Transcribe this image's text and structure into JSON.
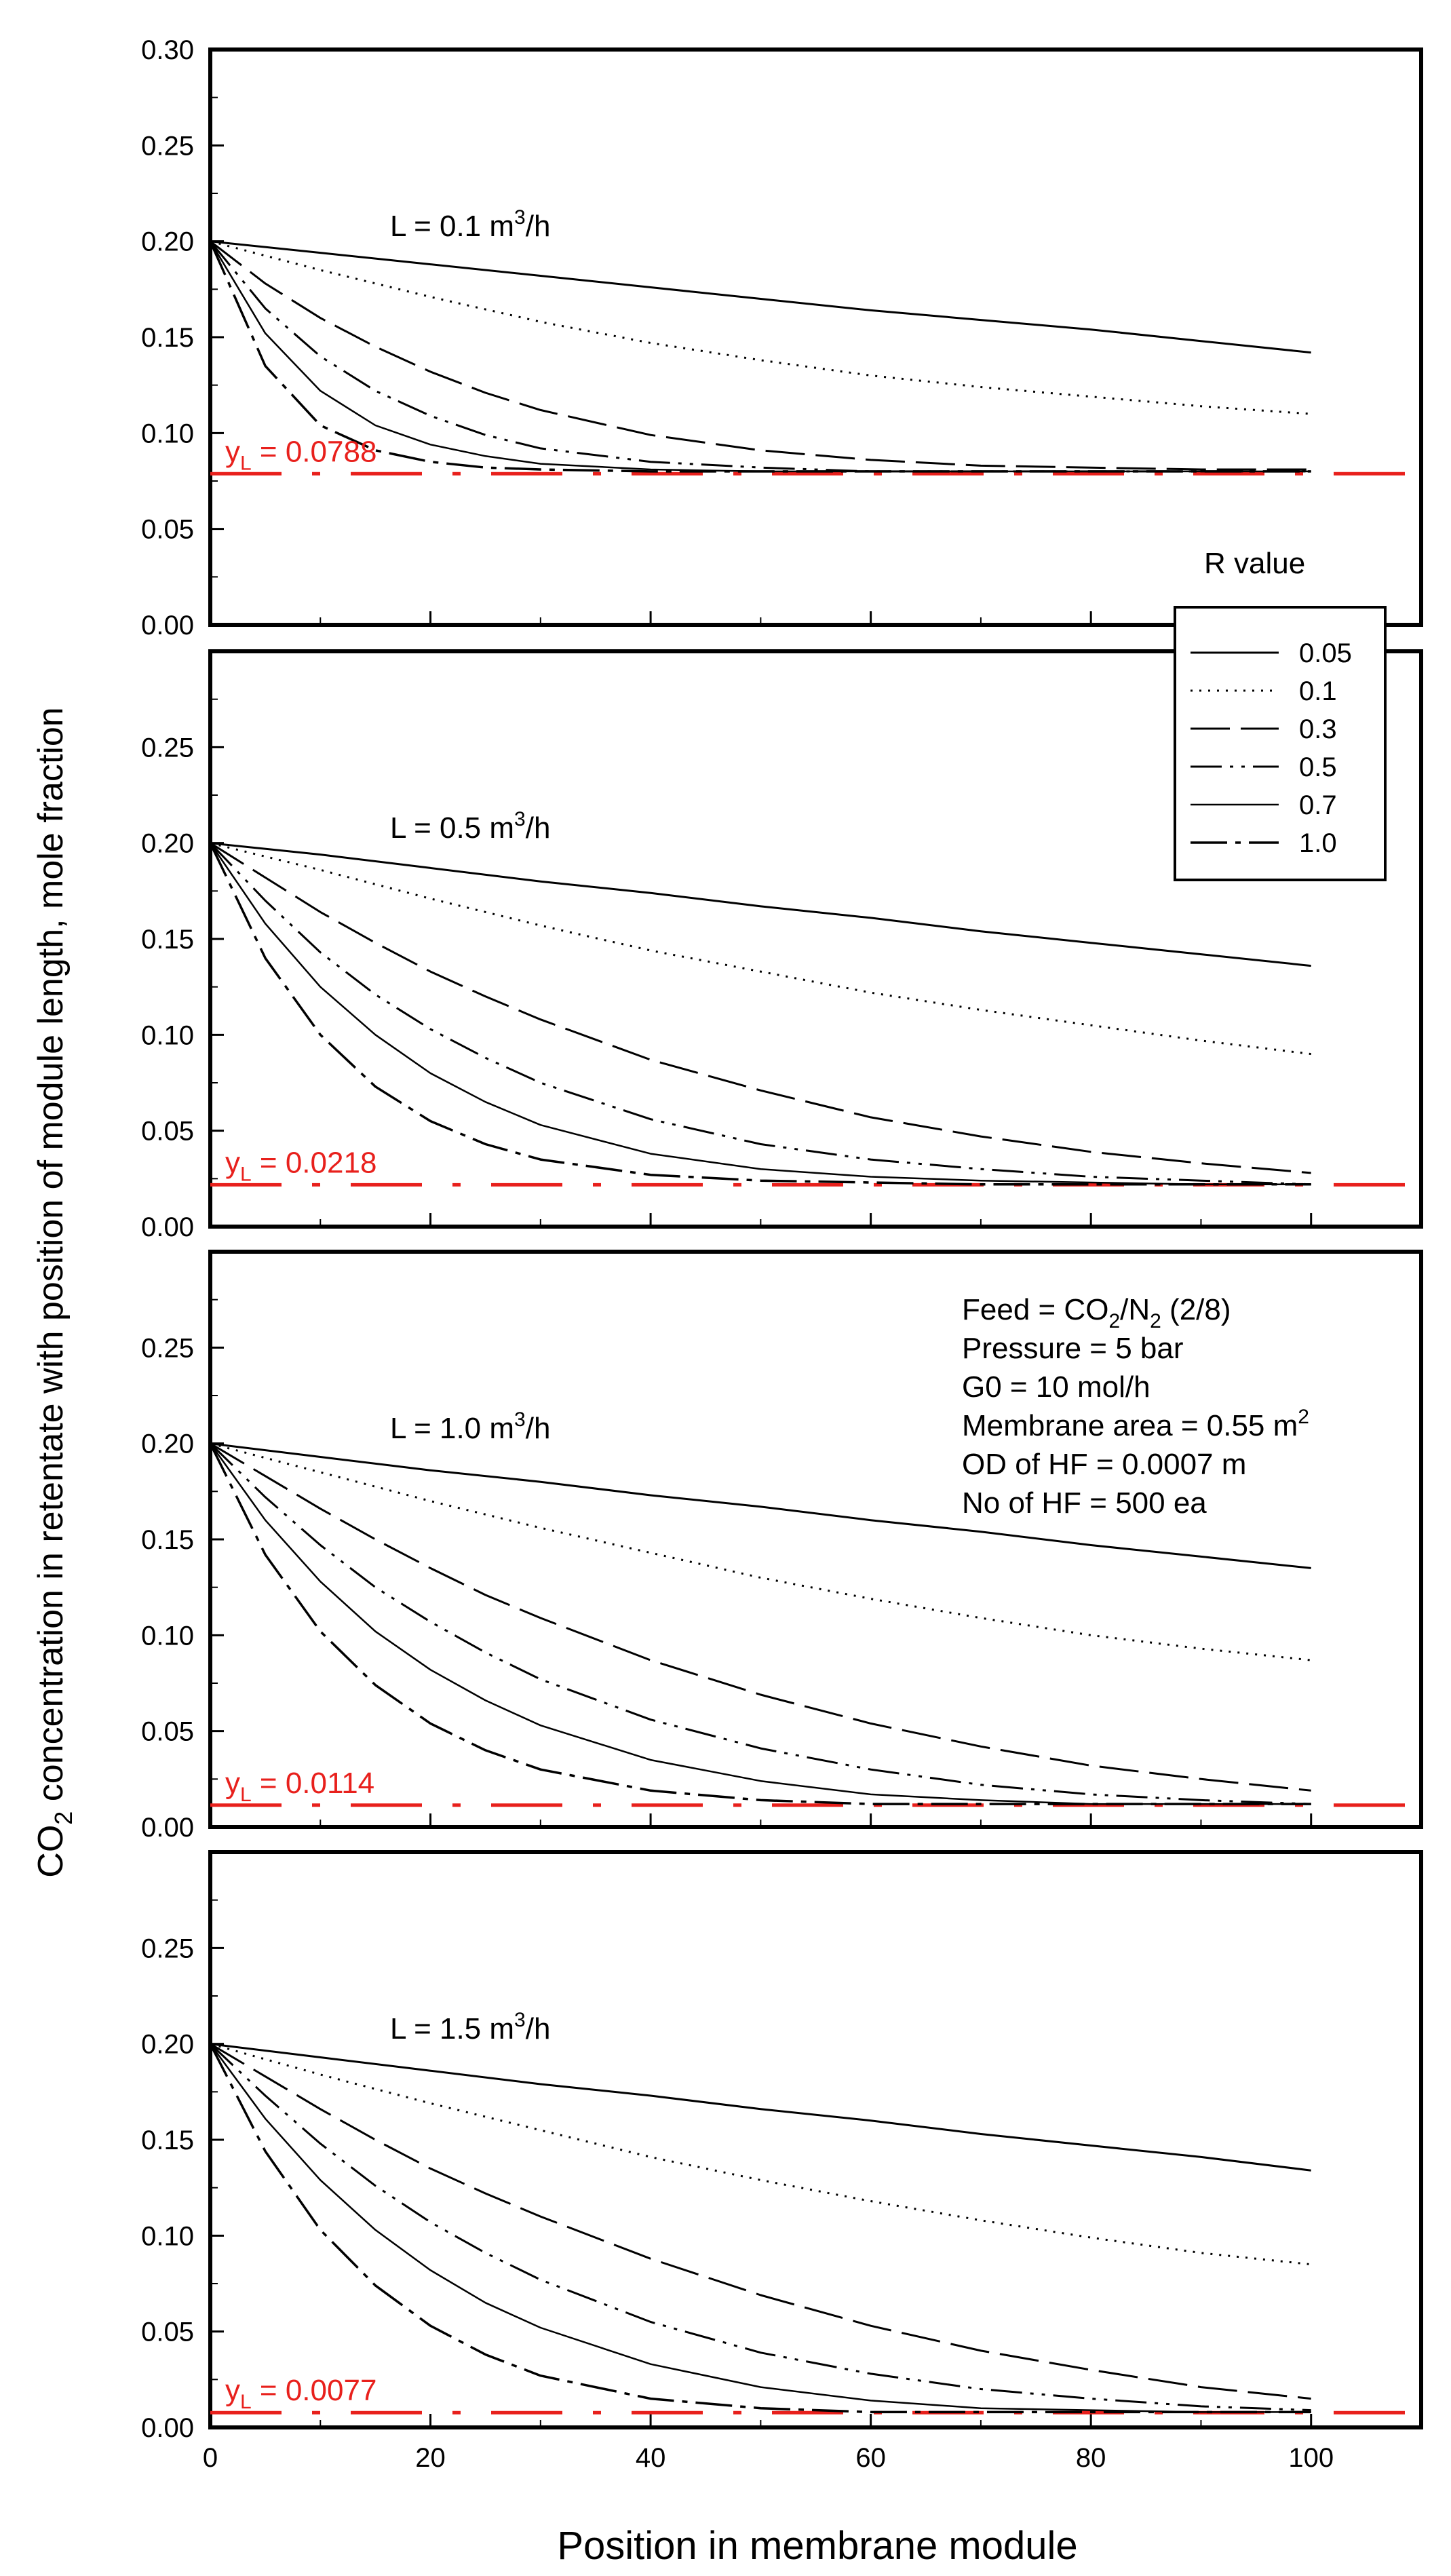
{
  "chart_data": {
    "type": "line",
    "title": "",
    "xlabel": "Position in membrane module",
    "ylabel": {
      "prefix": "CO",
      "sub": "2",
      "rest": " concentration in retentate with position of module length, mole fraction"
    },
    "x_range": [
      0,
      110
    ],
    "x_ticks": [
      0,
      20,
      40,
      60,
      80,
      100
    ],
    "legend": {
      "title": "R value",
      "placement": "right, between the first and second panels",
      "entries": [
        "0.05",
        "0.1",
        "0.3",
        "0.5",
        "0.7",
        "1.0"
      ]
    },
    "series_styles": {
      "0.05": "solid",
      "0.1": "dotted",
      "0.3": "long-dash",
      "0.5": "dash-dot-dot",
      "0.7": "solid",
      "1.0": "dash-dot"
    },
    "annotation": {
      "placement": "inside third panel, upper right",
      "lines": [
        {
          "text": "Feed = CO",
          "sub": "2",
          "mid": "/N",
          "sub2": "2",
          "tail": " (2/8)"
        },
        {
          "text": "Pressure = 5 bar"
        },
        {
          "text": "G0 = 10 mol/h"
        },
        {
          "text": "Membrane area = 0.55 m",
          "sup": "2"
        },
        {
          "text": "OD of HF =  0.0007 m"
        },
        {
          "text": "No of HF = 500 ea"
        }
      ]
    },
    "reference_color": "#e8201c",
    "panels": [
      {
        "label": "L = 0.1 m",
        "label_sup": "3",
        "label_tail": "/h",
        "y_range": [
          0,
          0.3
        ],
        "y_ticks": [
          "0.00",
          "0.05",
          "0.10",
          "0.15",
          "0.20",
          "0.25",
          "0.30"
        ],
        "yL": 0.0788,
        "yL_label": "y",
        "yL_sub": "L",
        "yL_text": " = 0.0788",
        "series": [
          {
            "name": "0.05",
            "x": [
              0,
              10,
              20,
              30,
              40,
              50,
              60,
              70,
              80,
              90,
              100
            ],
            "values": [
              0.2,
              0.194,
              0.188,
              0.182,
              0.176,
              0.17,
              0.164,
              0.159,
              0.154,
              0.148,
              0.142
            ]
          },
          {
            "name": "0.1",
            "x": [
              0,
              10,
              20,
              30,
              40,
              50,
              60,
              70,
              80,
              90,
              100
            ],
            "values": [
              0.2,
              0.185,
              0.171,
              0.158,
              0.147,
              0.138,
              0.13,
              0.124,
              0.119,
              0.114,
              0.11
            ]
          },
          {
            "name": "0.3",
            "x": [
              0,
              5,
              10,
              15,
              20,
              25,
              30,
              40,
              50,
              60,
              70,
              80,
              90,
              100
            ],
            "values": [
              0.2,
              0.178,
              0.16,
              0.145,
              0.132,
              0.121,
              0.112,
              0.099,
              0.091,
              0.086,
              0.083,
              0.082,
              0.081,
              0.081
            ]
          },
          {
            "name": "0.5",
            "x": [
              0,
              5,
              10,
              15,
              20,
              25,
              30,
              40,
              50,
              60,
              70,
              80,
              90,
              100
            ],
            "values": [
              0.2,
              0.165,
              0.14,
              0.122,
              0.109,
              0.099,
              0.092,
              0.085,
              0.082,
              0.08,
              0.08,
              0.08,
              0.08,
              0.08
            ]
          },
          {
            "name": "0.7",
            "x": [
              0,
              5,
              10,
              15,
              20,
              25,
              30,
              40,
              50,
              60,
              70,
              80,
              90,
              100
            ],
            "values": [
              0.2,
              0.152,
              0.122,
              0.104,
              0.094,
              0.088,
              0.084,
              0.081,
              0.08,
              0.08,
              0.08,
              0.08,
              0.08,
              0.08
            ]
          },
          {
            "name": "1.0",
            "x": [
              0,
              5,
              10,
              15,
              20,
              25,
              30,
              40,
              50,
              60,
              70,
              80,
              90,
              100
            ],
            "values": [
              0.2,
              0.135,
              0.104,
              0.091,
              0.085,
              0.082,
              0.081,
              0.08,
              0.08,
              0.08,
              0.08,
              0.08,
              0.08,
              0.08
            ]
          }
        ]
      },
      {
        "label": "L = 0.5 m",
        "label_sup": "3",
        "label_tail": "/h",
        "y_range": [
          0,
          0.3
        ],
        "y_ticks": [
          "0.00",
          "0.05",
          "0.10",
          "0.15",
          "0.20",
          "0.25"
        ],
        "yL": 0.0218,
        "yL_label": "y",
        "yL_sub": "L",
        "yL_text": " = 0.0218",
        "series": [
          {
            "name": "0.05",
            "x": [
              0,
              10,
              20,
              30,
              40,
              50,
              60,
              70,
              80,
              90,
              100
            ],
            "values": [
              0.2,
              0.194,
              0.187,
              0.18,
              0.174,
              0.167,
              0.161,
              0.154,
              0.148,
              0.142,
              0.136
            ]
          },
          {
            "name": "0.1",
            "x": [
              0,
              10,
              20,
              30,
              40,
              50,
              60,
              70,
              80,
              90,
              100
            ],
            "values": [
              0.2,
              0.186,
              0.171,
              0.157,
              0.144,
              0.133,
              0.122,
              0.113,
              0.105,
              0.097,
              0.09
            ]
          },
          {
            "name": "0.3",
            "x": [
              0,
              5,
              10,
              15,
              20,
              25,
              30,
              40,
              50,
              60,
              70,
              80,
              90,
              100
            ],
            "values": [
              0.2,
              0.182,
              0.164,
              0.148,
              0.133,
              0.12,
              0.108,
              0.087,
              0.071,
              0.057,
              0.047,
              0.039,
              0.033,
              0.028
            ]
          },
          {
            "name": "0.5",
            "x": [
              0,
              5,
              10,
              15,
              20,
              25,
              30,
              40,
              50,
              60,
              70,
              80,
              90,
              100
            ],
            "values": [
              0.2,
              0.17,
              0.143,
              0.121,
              0.103,
              0.088,
              0.075,
              0.056,
              0.043,
              0.035,
              0.03,
              0.026,
              0.024,
              0.022
            ]
          },
          {
            "name": "0.7",
            "x": [
              0,
              5,
              10,
              15,
              20,
              25,
              30,
              40,
              50,
              60,
              70,
              80,
              90,
              100
            ],
            "values": [
              0.2,
              0.158,
              0.125,
              0.1,
              0.08,
              0.065,
              0.053,
              0.038,
              0.03,
              0.026,
              0.024,
              0.023,
              0.022,
              0.022
            ]
          },
          {
            "name": "1.0",
            "x": [
              0,
              5,
              10,
              15,
              20,
              25,
              30,
              40,
              50,
              60,
              70,
              80,
              90,
              100
            ],
            "values": [
              0.2,
              0.14,
              0.1,
              0.073,
              0.055,
              0.043,
              0.035,
              0.027,
              0.024,
              0.023,
              0.022,
              0.022,
              0.022,
              0.022
            ]
          }
        ]
      },
      {
        "label": "L = 1.0 m",
        "label_sup": "3",
        "label_tail": "/h",
        "y_range": [
          0,
          0.3
        ],
        "y_ticks": [
          "0.00",
          "0.05",
          "0.10",
          "0.15",
          "0.20",
          "0.25"
        ],
        "yL": 0.0114,
        "yL_label": "y",
        "yL_sub": "L",
        "yL_text": " = 0.0114",
        "series": [
          {
            "name": "0.05",
            "x": [
              0,
              10,
              20,
              30,
              40,
              50,
              60,
              70,
              80,
              90,
              100
            ],
            "values": [
              0.2,
              0.193,
              0.186,
              0.18,
              0.173,
              0.167,
              0.16,
              0.154,
              0.147,
              0.141,
              0.135
            ]
          },
          {
            "name": "0.1",
            "x": [
              0,
              10,
              20,
              30,
              40,
              50,
              60,
              70,
              80,
              90,
              100
            ],
            "values": [
              0.2,
              0.185,
              0.17,
              0.156,
              0.143,
              0.13,
              0.119,
              0.109,
              0.1,
              0.093,
              0.087
            ]
          },
          {
            "name": "0.3",
            "x": [
              0,
              5,
              10,
              15,
              20,
              25,
              30,
              40,
              50,
              60,
              70,
              80,
              90,
              100
            ],
            "values": [
              0.2,
              0.183,
              0.166,
              0.15,
              0.135,
              0.121,
              0.109,
              0.087,
              0.069,
              0.054,
              0.042,
              0.032,
              0.025,
              0.019
            ]
          },
          {
            "name": "0.5",
            "x": [
              0,
              5,
              10,
              15,
              20,
              25,
              30,
              40,
              50,
              60,
              70,
              80,
              90,
              100
            ],
            "values": [
              0.2,
              0.172,
              0.147,
              0.125,
              0.107,
              0.091,
              0.077,
              0.056,
              0.041,
              0.03,
              0.022,
              0.017,
              0.014,
              0.012
            ]
          },
          {
            "name": "0.7",
            "x": [
              0,
              5,
              10,
              15,
              20,
              25,
              30,
              40,
              50,
              60,
              70,
              80,
              90,
              100
            ],
            "values": [
              0.2,
              0.16,
              0.128,
              0.102,
              0.082,
              0.066,
              0.053,
              0.035,
              0.024,
              0.017,
              0.014,
              0.012,
              0.012,
              0.012
            ]
          },
          {
            "name": "1.0",
            "x": [
              0,
              5,
              10,
              15,
              20,
              25,
              30,
              40,
              50,
              60,
              70,
              80,
              90,
              100
            ],
            "values": [
              0.2,
              0.142,
              0.102,
              0.074,
              0.054,
              0.04,
              0.03,
              0.019,
              0.014,
              0.012,
              0.012,
              0.012,
              0.012,
              0.012
            ]
          }
        ]
      },
      {
        "label": "L = 1.5 m",
        "label_sup": "3",
        "label_tail": "/h",
        "y_range": [
          0,
          0.3
        ],
        "y_ticks": [
          "0.00",
          "0.05",
          "0.10",
          "0.15",
          "0.20",
          "0.25"
        ],
        "yL": 0.0077,
        "yL_label": "y",
        "yL_sub": "L",
        "yL_text": " = 0.0077",
        "series": [
          {
            "name": "0.05",
            "x": [
              0,
              10,
              20,
              30,
              40,
              50,
              60,
              70,
              80,
              90,
              100
            ],
            "values": [
              0.2,
              0.193,
              0.186,
              0.179,
              0.173,
              0.166,
              0.16,
              0.153,
              0.147,
              0.141,
              0.134
            ]
          },
          {
            "name": "0.1",
            "x": [
              0,
              10,
              20,
              30,
              40,
              50,
              60,
              70,
              80,
              90,
              100
            ],
            "values": [
              0.2,
              0.184,
              0.169,
              0.155,
              0.141,
              0.129,
              0.118,
              0.108,
              0.099,
              0.091,
              0.085
            ]
          },
          {
            "name": "0.3",
            "x": [
              0,
              5,
              10,
              15,
              20,
              25,
              30,
              40,
              50,
              60,
              70,
              80,
              90,
              100
            ],
            "values": [
              0.2,
              0.183,
              0.166,
              0.15,
              0.135,
              0.122,
              0.11,
              0.088,
              0.069,
              0.053,
              0.04,
              0.03,
              0.021,
              0.015
            ]
          },
          {
            "name": "0.5",
            "x": [
              0,
              5,
              10,
              15,
              20,
              25,
              30,
              40,
              50,
              60,
              70,
              80,
              90,
              100
            ],
            "values": [
              0.2,
              0.173,
              0.148,
              0.126,
              0.107,
              0.091,
              0.077,
              0.055,
              0.039,
              0.028,
              0.02,
              0.015,
              0.011,
              0.009
            ]
          },
          {
            "name": "0.7",
            "x": [
              0,
              5,
              10,
              15,
              20,
              25,
              30,
              40,
              50,
              60,
              70,
              80,
              90,
              100
            ],
            "values": [
              0.2,
              0.161,
              0.129,
              0.103,
              0.082,
              0.065,
              0.052,
              0.033,
              0.021,
              0.014,
              0.01,
              0.009,
              0.008,
              0.008
            ]
          },
          {
            "name": "1.0",
            "x": [
              0,
              5,
              10,
              15,
              20,
              25,
              30,
              40,
              50,
              60,
              70,
              80,
              90,
              100
            ],
            "values": [
              0.2,
              0.144,
              0.103,
              0.074,
              0.053,
              0.038,
              0.027,
              0.015,
              0.01,
              0.008,
              0.008,
              0.008,
              0.008,
              0.008
            ]
          }
        ]
      }
    ]
  }
}
